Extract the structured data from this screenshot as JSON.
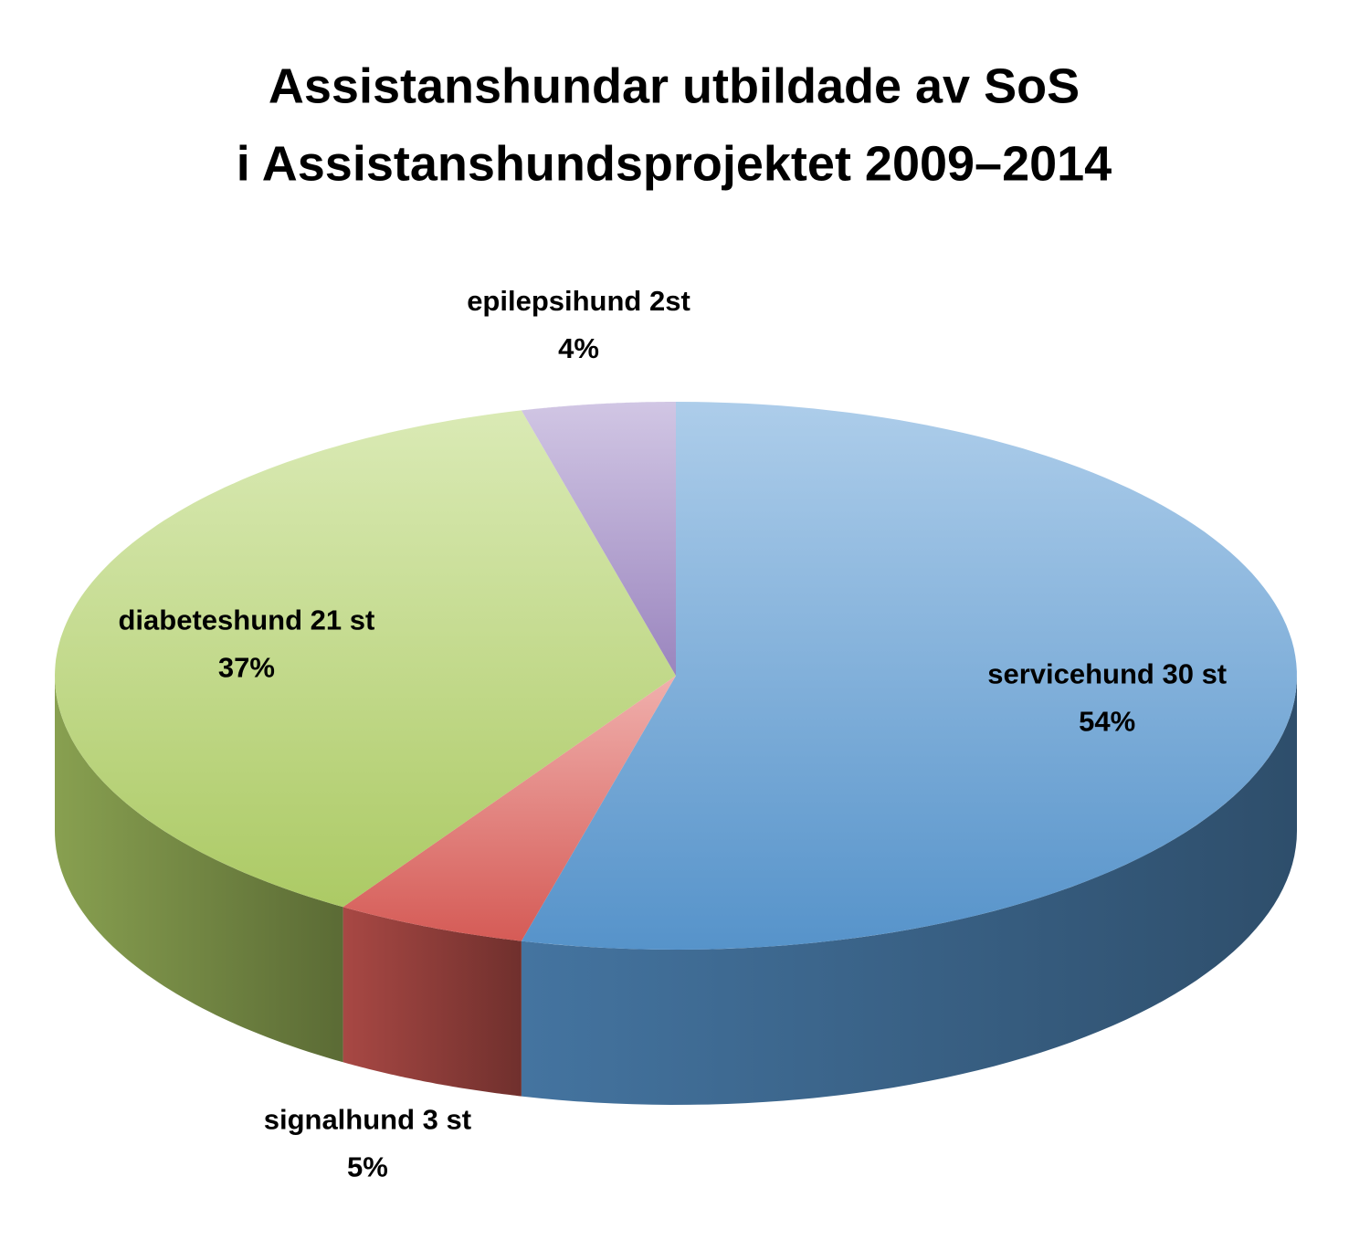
{
  "chart_data": {
    "type": "pie3d",
    "title": [
      "Assistanshundar utbildade av SoS",
      "i Assistanshundsprojektet 2009–2014"
    ],
    "categories": [
      "servicehund 30 st",
      "signalhund 3 st",
      "diabeteshund 21 st",
      "epilepsihund 2st"
    ],
    "values": [
      54,
      5,
      37,
      4
    ],
    "value_labels": [
      "54%",
      "5%",
      "37%",
      "4%"
    ],
    "colors": [
      "#5b9bd5",
      "#e0605a",
      "#b5d56a",
      "#a28cc8"
    ]
  }
}
